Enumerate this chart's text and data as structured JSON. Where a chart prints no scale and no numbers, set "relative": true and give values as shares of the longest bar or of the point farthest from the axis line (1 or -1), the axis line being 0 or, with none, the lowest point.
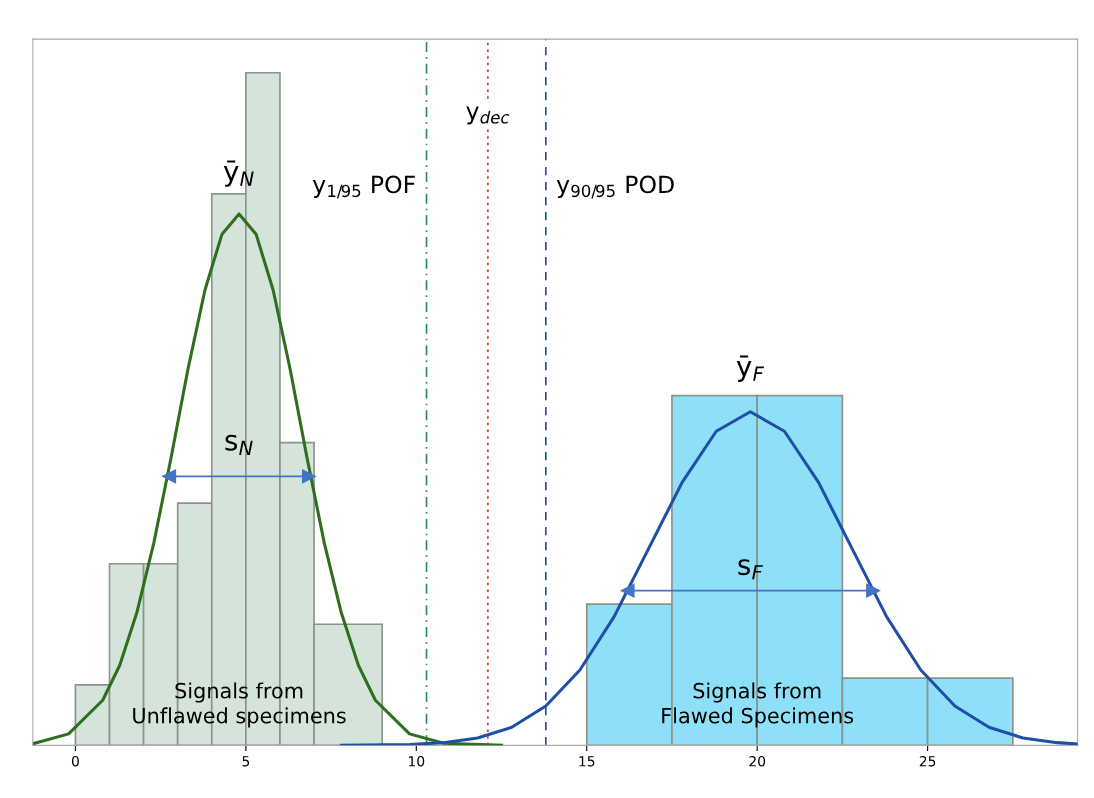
{
  "chart_data": {
    "type": "histogram",
    "relative": true,
    "xlim": [
      -1.25,
      29.4
    ],
    "xticks": [
      0,
      5,
      10,
      15,
      20,
      25
    ],
    "grid": false,
    "series": [
      {
        "color": "#d5e4da",
        "bins": [
          0,
          1,
          2,
          3,
          4,
          5,
          6,
          7,
          9
        ],
        "values": [
          0.09,
          0.27,
          0.27,
          0.36,
          0.82,
          1.0,
          0.45,
          0.18
        ]
      },
      {
        "color": "#8ee0f9",
        "bins": [
          15,
          17.5,
          20,
          22.5,
          25,
          27.5
        ],
        "values": [
          0.21,
          0.52,
          0.52,
          0.1,
          0.1
        ]
      },
      {
        "type": "line",
        "color": "#2f6e1f",
        "x": [
          -1.2,
          -0.2,
          0.8,
          1.3,
          1.8,
          2.3,
          2.8,
          3.3,
          3.8,
          4.3,
          4.8,
          5.3,
          5.8,
          6.3,
          6.8,
          7.3,
          7.8,
          8.3,
          8.8,
          9.8,
          10.8,
          12.5
        ],
        "values": [
          0.003,
          0.017,
          0.067,
          0.119,
          0.197,
          0.301,
          0.426,
          0.559,
          0.677,
          0.76,
          0.79,
          0.76,
          0.677,
          0.559,
          0.426,
          0.301,
          0.197,
          0.119,
          0.067,
          0.017,
          0.003,
          0.0
        ]
      },
      {
        "type": "line",
        "color": "#1f4fa8",
        "x": [
          7.8,
          9.8,
          10.8,
          11.8,
          12.8,
          13.8,
          14.8,
          15.8,
          16.8,
          17.8,
          18.8,
          19.8,
          20.8,
          21.8,
          22.8,
          23.8,
          24.8,
          25.8,
          26.8,
          27.8,
          28.8,
          29.4
        ],
        "values": [
          0.0001,
          0.0013,
          0.004,
          0.0109,
          0.0268,
          0.0585,
          0.112,
          0.191,
          0.291,
          0.391,
          0.467,
          0.496,
          0.467,
          0.391,
          0.291,
          0.191,
          0.112,
          0.0585,
          0.0268,
          0.0109,
          0.004,
          0.002
        ]
      },
      {
        "type": "line",
        "color": "#4472c4",
        "marker": "triangle",
        "x": [
          2.75,
          6.85
        ],
        "values": [
          0.4,
          0.4
        ]
      },
      {
        "type": "line",
        "color": "#4472c4",
        "marker": "triangle",
        "x": [
          16.2,
          23.4
        ],
        "values": [
          0.23,
          0.23
        ]
      }
    ],
    "ref_lines": [
      {
        "axis": "x",
        "value": 10.3,
        "label": "y$_{1/95}$ POF",
        "color": "#2e8b57",
        "line_style": "dashdot"
      },
      {
        "axis": "x",
        "value": 12.1,
        "label": "y$_{dec}$",
        "color": "#e03030",
        "line_style": "dotted"
      },
      {
        "axis": "x",
        "value": 13.8,
        "label": "y$_{90/95}$ POD",
        "color": "#1f4fa8",
        "line_style": "dashed"
      }
    ],
    "annotations": [
      "ȳ$_{N}$",
      "ȳ$_{F}$",
      "s$_{N}$",
      "s$_{F}$",
      "Signals from\nUnflawed specimens",
      "Signals from\nFlawed Specimens"
    ]
  }
}
